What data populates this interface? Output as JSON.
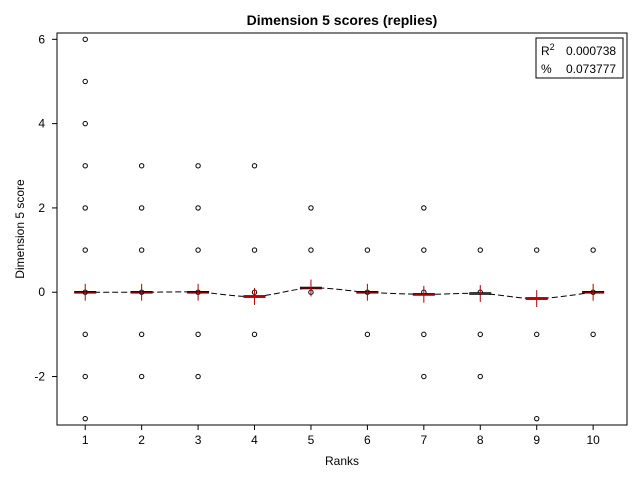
{
  "chart_data": {
    "type": "scatter",
    "title": "Dimension 5 scores (replies)",
    "xlabel": "Ranks",
    "ylabel": "Dimension 5 score",
    "xlim": [
      0.5,
      10.6
    ],
    "ylim": [
      -3.15,
      6.15
    ],
    "x_ticks": [
      1,
      2,
      3,
      4,
      5,
      6,
      7,
      8,
      9,
      10
    ],
    "y_ticks": [
      -2,
      0,
      2,
      4,
      6
    ],
    "grid": false,
    "legend_box": {
      "position": "top-right",
      "rows": [
        {
          "label": "R",
          "superscript": "2",
          "value": "0.000738"
        },
        {
          "label": "%",
          "value": "0.073777"
        }
      ]
    },
    "points": [
      {
        "rank": 1,
        "values": [
          6,
          5,
          4,
          3,
          2,
          1,
          0,
          -1,
          -2,
          -3
        ]
      },
      {
        "rank": 2,
        "values": [
          3,
          2,
          1,
          0,
          -1,
          -2
        ]
      },
      {
        "rank": 3,
        "values": [
          3,
          2,
          1,
          0,
          -1,
          -2
        ]
      },
      {
        "rank": 4,
        "values": [
          3,
          1,
          0,
          -1
        ]
      },
      {
        "rank": 5,
        "values": [
          2,
          1,
          0
        ]
      },
      {
        "rank": 6,
        "values": [
          1,
          0,
          -1
        ]
      },
      {
        "rank": 7,
        "values": [
          2,
          1,
          0,
          -1,
          -2
        ]
      },
      {
        "rank": 8,
        "values": [
          1,
          0,
          -1,
          -2
        ]
      },
      {
        "rank": 9,
        "values": [
          1,
          -1,
          -3
        ]
      },
      {
        "rank": 10,
        "values": [
          1,
          0,
          -1
        ]
      }
    ],
    "means": [
      {
        "rank": 1,
        "mean": 0.0,
        "err": 0.2
      },
      {
        "rank": 2,
        "mean": 0.0,
        "err": 0.2
      },
      {
        "rank": 3,
        "mean": 0.0,
        "err": 0.2
      },
      {
        "rank": 4,
        "mean": -0.1,
        "err": 0.2
      },
      {
        "rank": 5,
        "mean": 0.1,
        "err": 0.2
      },
      {
        "rank": 6,
        "mean": 0.0,
        "err": 0.2
      },
      {
        "rank": 7,
        "mean": -0.05,
        "err": 0.2
      },
      {
        "rank": 8,
        "mean": -0.03,
        "err": 0.2
      },
      {
        "rank": 9,
        "mean": -0.15,
        "err": 0.2
      },
      {
        "rank": 10,
        "mean": 0.0,
        "err": 0.2
      }
    ],
    "colors": {
      "points": "#000000",
      "means": "#b00000",
      "fit_line": "#000000"
    }
  }
}
